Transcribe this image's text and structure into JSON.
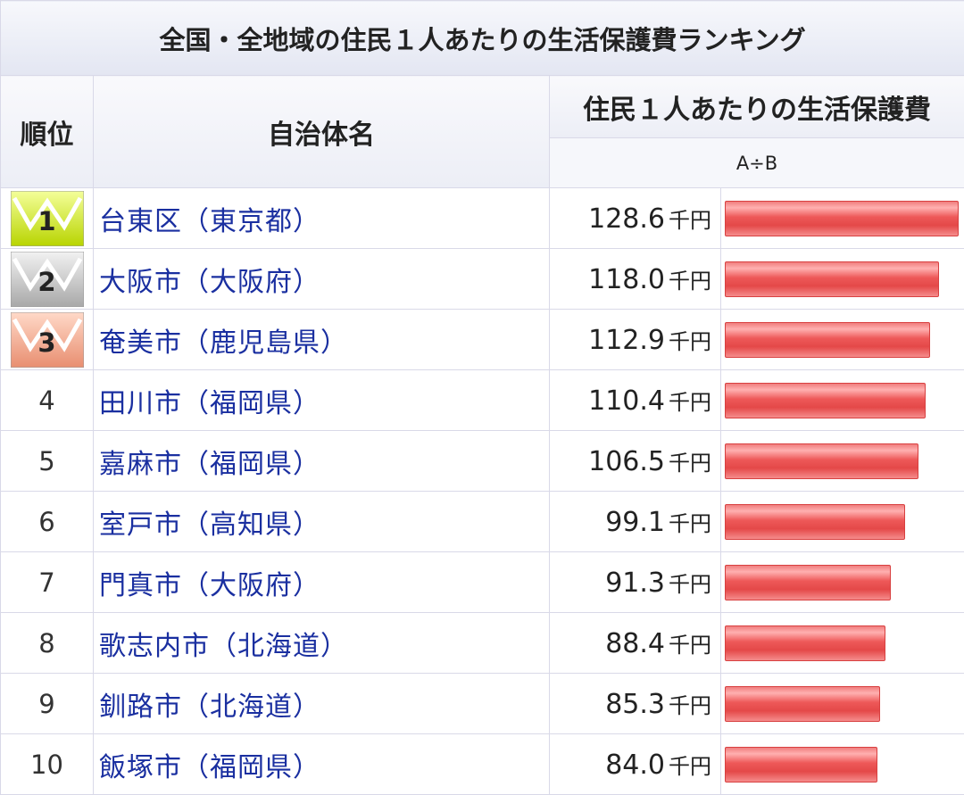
{
  "title": "全国・全地域の住民１人あたりの生活保護費ランキング",
  "headers": {
    "rank": "順位",
    "name": "自治体名",
    "value": "住民１人あたりの生活保護費",
    "formula": "A÷B"
  },
  "unit": "千円",
  "colors": {
    "link": "#1a2fa0",
    "bar": "#e44848",
    "crown_gold": "#d8e800",
    "crown_silver": "#bdbdbd",
    "crown_bronze": "#f0a080"
  },
  "rows": [
    {
      "rank": "1",
      "name": "台東区（東京都）",
      "value": "128.6"
    },
    {
      "rank": "2",
      "name": "大阪市（大阪府）",
      "value": "118.0"
    },
    {
      "rank": "3",
      "name": "奄美市（鹿児島県）",
      "value": "112.9"
    },
    {
      "rank": "4",
      "name": "田川市（福岡県）",
      "value": "110.4"
    },
    {
      "rank": "5",
      "name": "嘉麻市（福岡県）",
      "value": "106.5"
    },
    {
      "rank": "6",
      "name": "室戸市（高知県）",
      "value": "99.1"
    },
    {
      "rank": "7",
      "name": "門真市（大阪府）",
      "value": "91.3"
    },
    {
      "rank": "8",
      "name": "歌志内市（北海道）",
      "value": "88.4"
    },
    {
      "rank": "9",
      "name": "釧路市（北海道）",
      "value": "85.3"
    },
    {
      "rank": "10",
      "name": "飯塚市（福岡県）",
      "value": "84.0"
    }
  ],
  "chart_data": {
    "type": "bar",
    "title": "全国・全地域の住民１人あたりの生活保護費ランキング",
    "categories": [
      "台東区（東京都）",
      "大阪市（大阪府）",
      "奄美市（鹿児島県）",
      "田川市（福岡県）",
      "嘉麻市（福岡県）",
      "室戸市（高知県）",
      "門真市（大阪府）",
      "歌志内市（北海道）",
      "釧路市（北海道）",
      "飯塚市（福岡県）"
    ],
    "values": [
      128.6,
      118.0,
      112.9,
      110.4,
      106.5,
      99.1,
      91.3,
      88.4,
      85.3,
      84.0
    ],
    "unit": "千円",
    "max_value": 128.6
  }
}
